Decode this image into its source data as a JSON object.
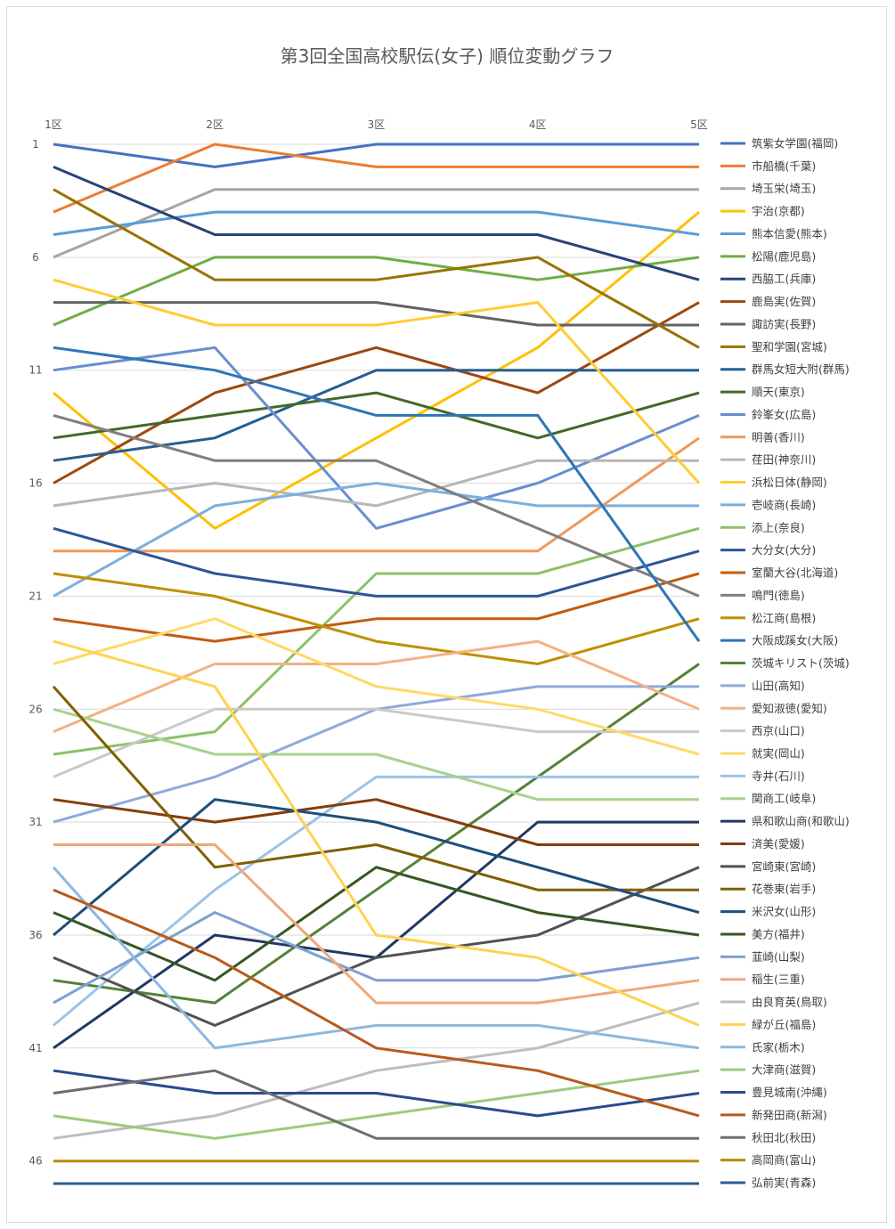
{
  "chart_data": {
    "type": "line",
    "title": "第3回全国高校駅伝(女子) 順位変動グラフ",
    "xlabel": "",
    "ylabel": "",
    "categories": [
      "1区",
      "2区",
      "3区",
      "4区",
      "5区"
    ],
    "y_tick_labels": [
      "1",
      "6",
      "11",
      "16",
      "21",
      "26",
      "31",
      "36",
      "41",
      "46"
    ],
    "y_ticks": [
      1,
      6,
      11,
      16,
      21,
      26,
      31,
      36,
      41,
      46
    ],
    "ylim": [
      1,
      47
    ],
    "y_reversed": true,
    "grid": true,
    "legend_position": "right",
    "series": [
      {
        "name": "筑紫女学園(福岡)",
        "color": "#4472C4",
        "values": [
          1,
          2,
          1,
          1,
          1
        ]
      },
      {
        "name": "市船橋(千葉)",
        "color": "#ED7D31",
        "values": [
          4,
          1,
          2,
          2,
          2
        ]
      },
      {
        "name": "埼玉栄(埼玉)",
        "color": "#A5A5A5",
        "values": [
          6,
          3,
          3,
          3,
          3
        ]
      },
      {
        "name": "宇治(京都)",
        "color": "#FFC000",
        "values": [
          12,
          18,
          14,
          10,
          4
        ]
      },
      {
        "name": "熊本信愛(熊本)",
        "color": "#5B9BD5",
        "values": [
          5,
          4,
          4,
          4,
          5
        ]
      },
      {
        "name": "松陽(鹿児島)",
        "color": "#70AD47",
        "values": [
          9,
          6,
          6,
          7,
          6
        ]
      },
      {
        "name": "西脇工(兵庫)",
        "color": "#264478",
        "values": [
          2,
          5,
          5,
          5,
          7
        ]
      },
      {
        "name": "鹿島実(佐賀)",
        "color": "#9E480E",
        "values": [
          16,
          12,
          10,
          12,
          8
        ]
      },
      {
        "name": "諏訪実(長野)",
        "color": "#636363",
        "values": [
          8,
          8,
          8,
          9,
          9
        ]
      },
      {
        "name": "聖和学園(宮城)",
        "color": "#997300",
        "values": [
          3,
          7,
          7,
          6,
          10
        ]
      },
      {
        "name": "群馬女短大附(群馬)",
        "color": "#255E91",
        "values": [
          15,
          14,
          11,
          11,
          11
        ]
      },
      {
        "name": "順天(東京)",
        "color": "#43682B",
        "values": [
          14,
          13,
          12,
          14,
          12
        ]
      },
      {
        "name": "鈴峯女(広島)",
        "color": "#698ED0",
        "values": [
          11,
          10,
          18,
          16,
          13
        ]
      },
      {
        "name": "明善(香川)",
        "color": "#F1975A",
        "values": [
          19,
          19,
          19,
          19,
          14
        ]
      },
      {
        "name": "荏田(神奈川)",
        "color": "#B7B7B7",
        "values": [
          17,
          16,
          17,
          15,
          15
        ]
      },
      {
        "name": "浜松日体(静岡)",
        "color": "#FFCD33",
        "values": [
          7,
          9,
          9,
          8,
          16
        ]
      },
      {
        "name": "壱岐商(長崎)",
        "color": "#7CAFDD",
        "values": [
          21,
          17,
          16,
          17,
          17
        ]
      },
      {
        "name": "添上(奈良)",
        "color": "#8CC168",
        "values": [
          28,
          27,
          20,
          20,
          18
        ]
      },
      {
        "name": "大分女(大分)",
        "color": "#2F5597",
        "values": [
          18,
          20,
          21,
          21,
          19
        ]
      },
      {
        "name": "室蘭大谷(北海道)",
        "color": "#C55A11",
        "values": [
          22,
          23,
          22,
          22,
          20
        ]
      },
      {
        "name": "鳴門(徳島)",
        "color": "#7F7F7F",
        "values": [
          13,
          15,
          15,
          18,
          21
        ]
      },
      {
        "name": "松江商(島根)",
        "color": "#BF9000",
        "values": [
          20,
          21,
          23,
          24,
          22
        ]
      },
      {
        "name": "大阪成蹊女(大阪)",
        "color": "#2E75B6",
        "values": [
          10,
          11,
          13,
          13,
          23
        ]
      },
      {
        "name": "茨城キリスト(茨城)",
        "color": "#548235",
        "values": [
          38,
          39,
          34,
          29,
          24
        ]
      },
      {
        "name": "山田(高知)",
        "color": "#8FAADC",
        "values": [
          31,
          29,
          26,
          25,
          25
        ]
      },
      {
        "name": "愛知淑徳(愛知)",
        "color": "#F4B183",
        "values": [
          27,
          24,
          24,
          23,
          26
        ]
      },
      {
        "name": "西京(山口)",
        "color": "#C9C9C9",
        "values": [
          29,
          26,
          26,
          27,
          27
        ]
      },
      {
        "name": "就実(岡山)",
        "color": "#FFD966",
        "values": [
          24,
          22,
          25,
          26,
          28
        ]
      },
      {
        "name": "寺井(石川)",
        "color": "#9DC3E6",
        "values": [
          40,
          34,
          29,
          29,
          29
        ]
      },
      {
        "name": "関商工(岐阜)",
        "color": "#A9D18E",
        "values": [
          26,
          28,
          28,
          30,
          30
        ]
      },
      {
        "name": "県和歌山商(和歌山)",
        "color": "#203864",
        "values": [
          41,
          36,
          37,
          31,
          31
        ]
      },
      {
        "name": "済美(愛媛)",
        "color": "#843C0C",
        "values": [
          30,
          31,
          30,
          32,
          32
        ]
      },
      {
        "name": "宮崎東(宮崎)",
        "color": "#525252",
        "values": [
          37,
          40,
          37,
          36,
          33
        ]
      },
      {
        "name": "花巻東(岩手)",
        "color": "#7F6000",
        "values": [
          25,
          33,
          32,
          34,
          34
        ]
      },
      {
        "name": "米沢女(山形)",
        "color": "#1F4E79",
        "values": [
          36,
          30,
          31,
          33,
          35
        ]
      },
      {
        "name": "美方(福井)",
        "color": "#375623",
        "values": [
          35,
          38,
          33,
          35,
          36
        ]
      },
      {
        "name": "韮崎(山梨)",
        "color": "#7F9FD3",
        "values": [
          39,
          35,
          38,
          38,
          37
        ]
      },
      {
        "name": "稲生(三重)",
        "color": "#EFA878",
        "values": [
          32,
          32,
          39,
          39,
          38
        ]
      },
      {
        "name": "由良育英(鳥取)",
        "color": "#BDBDBD",
        "values": [
          45,
          44,
          42,
          41,
          39
        ]
      },
      {
        "name": "緑が丘(福島)",
        "color": "#FFD34F",
        "values": [
          23,
          25,
          36,
          37,
          40
        ]
      },
      {
        "name": "氏家(栃木)",
        "color": "#8DB8E0",
        "values": [
          33,
          41,
          40,
          40,
          41
        ]
      },
      {
        "name": "大津商(滋賀)",
        "color": "#9BCB7B",
        "values": [
          44,
          45,
          44,
          43,
          42
        ]
      },
      {
        "name": "豊見城南(沖縄)",
        "color": "#2A4B8C",
        "values": [
          42,
          43,
          43,
          44,
          43
        ]
      },
      {
        "name": "新発田商(新潟)",
        "color": "#B85A1A",
        "values": [
          34,
          37,
          41,
          42,
          44
        ]
      },
      {
        "name": "秋田北(秋田)",
        "color": "#6E6E6E",
        "values": [
          43,
          42,
          45,
          45,
          45
        ]
      },
      {
        "name": "高岡商(富山)",
        "color": "#B88A00",
        "values": [
          46,
          46,
          46,
          46,
          46
        ]
      },
      {
        "name": "弘前実(青森)",
        "color": "#2B5F92",
        "values": [
          47,
          47,
          47,
          47,
          47
        ]
      }
    ]
  }
}
